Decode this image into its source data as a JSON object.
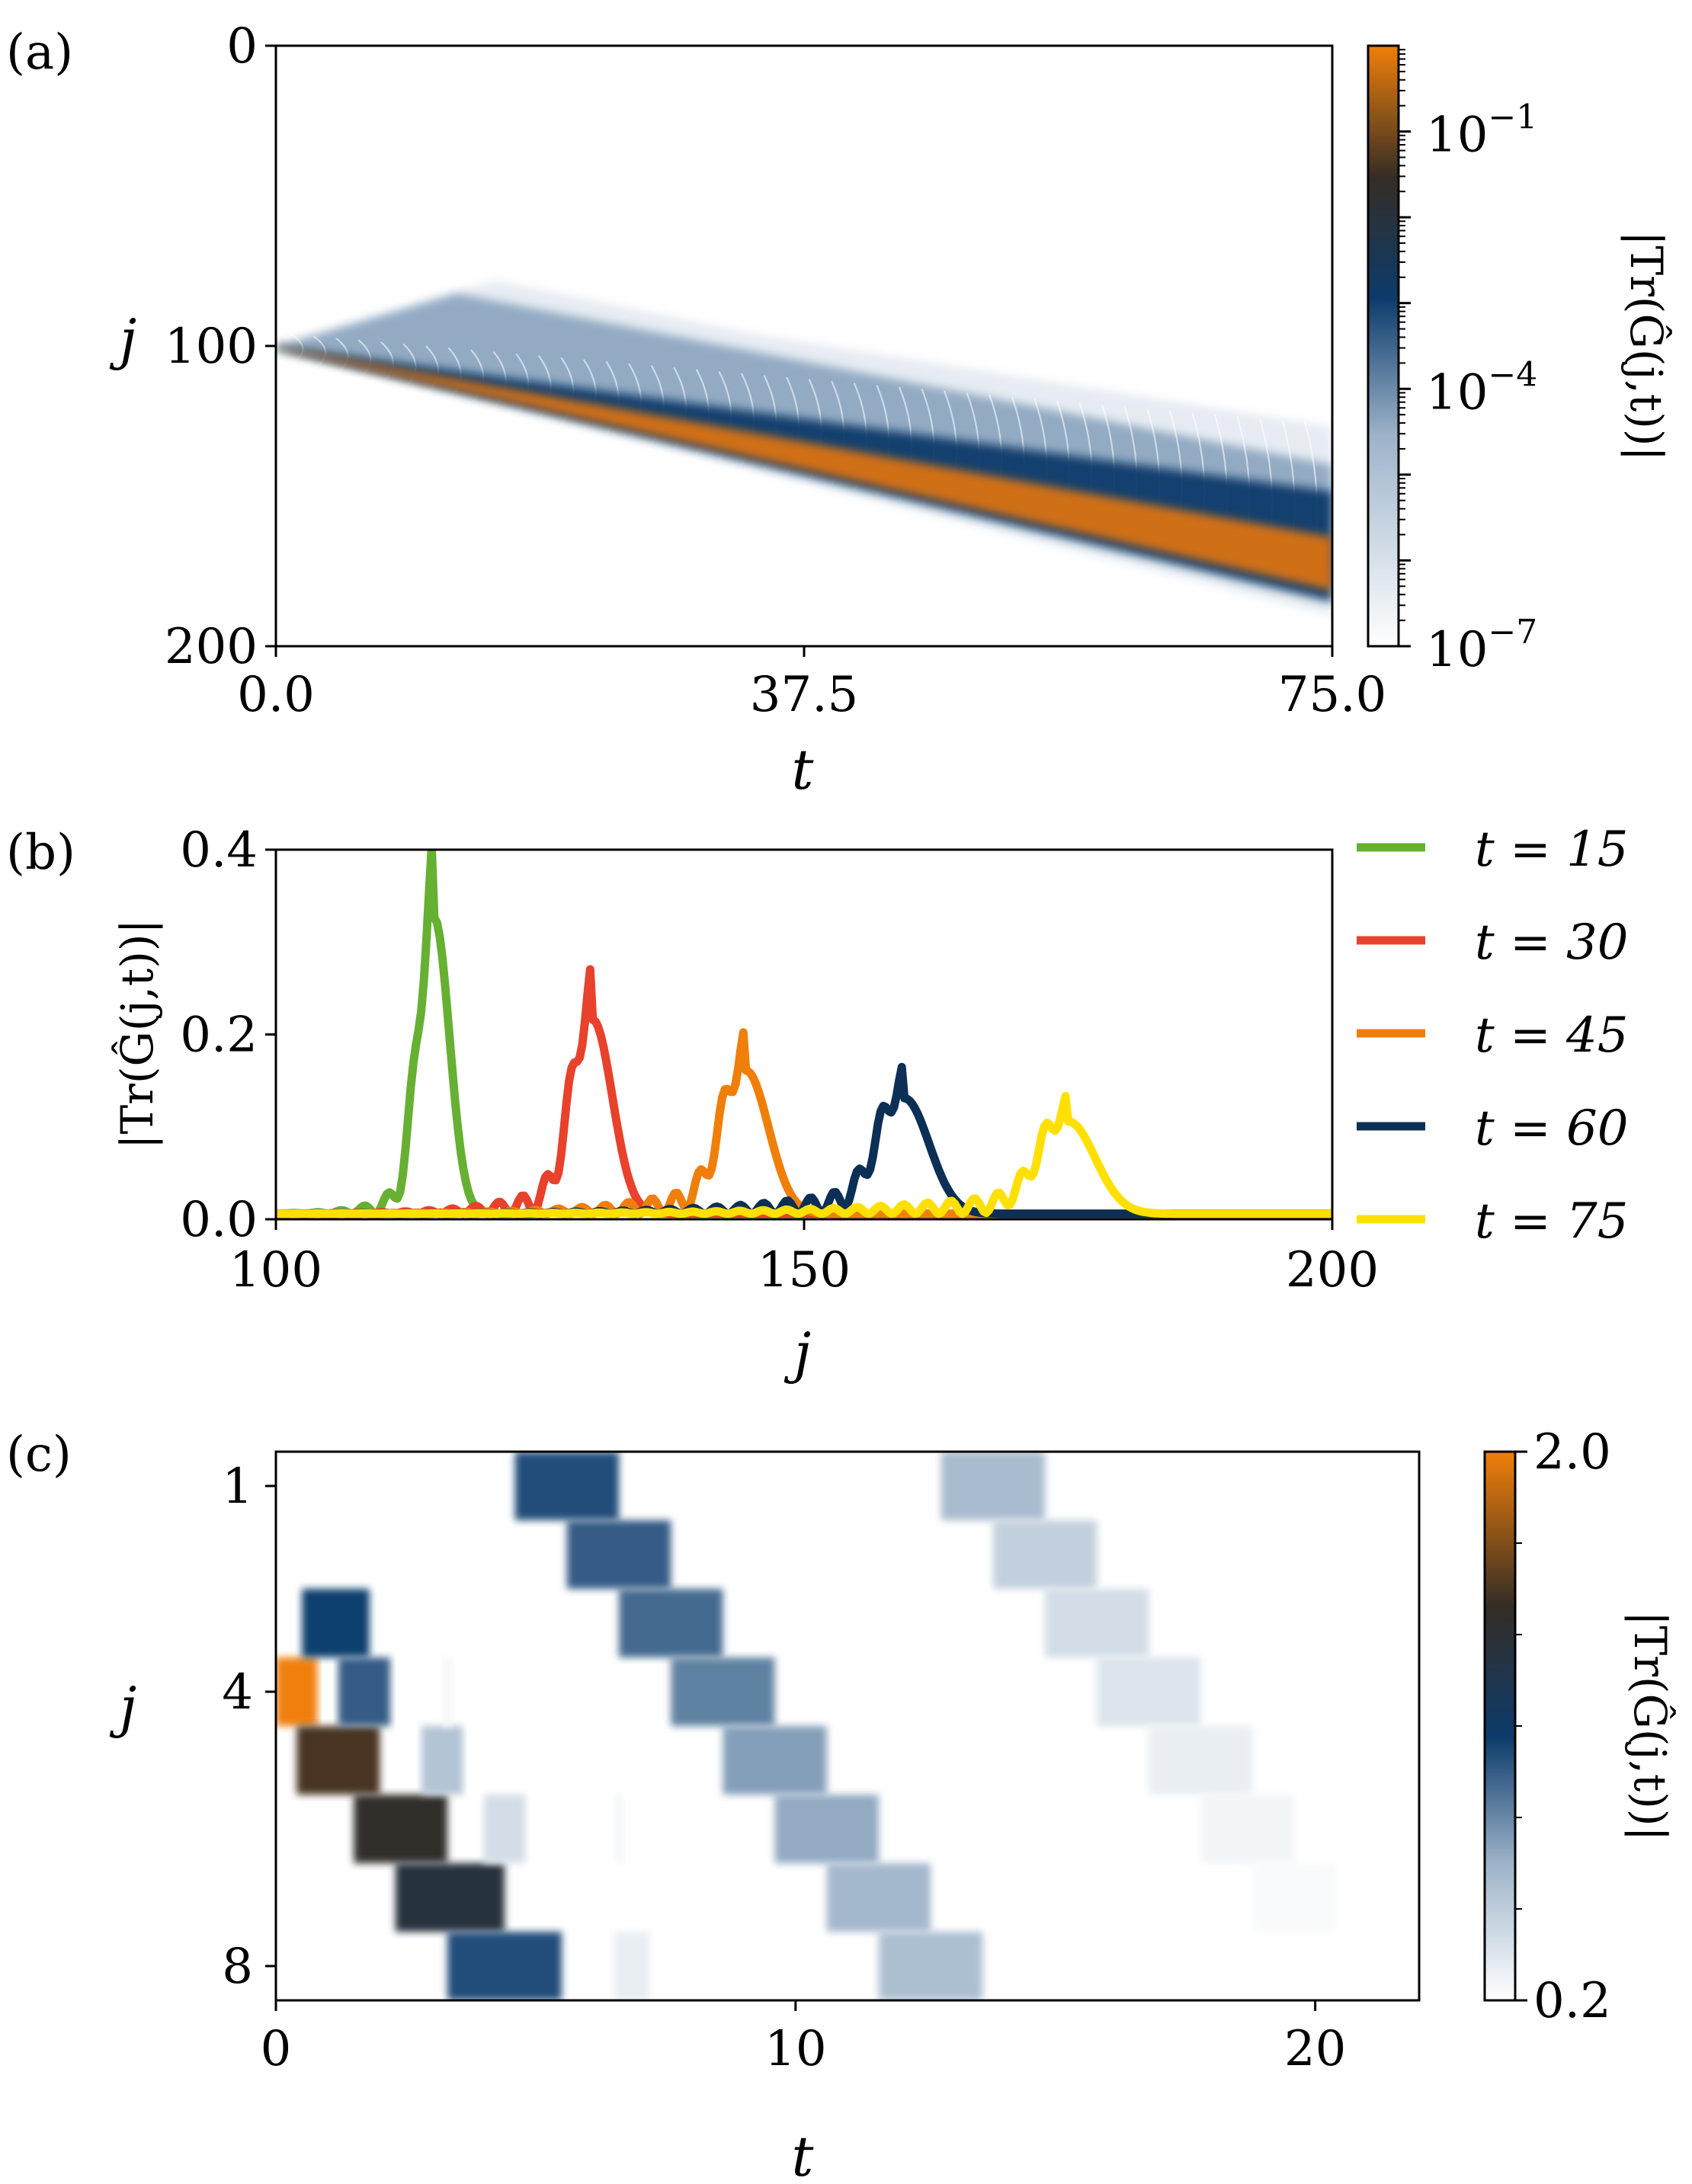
{
  "colors": {
    "green": "#66b032",
    "red": "#e8412c",
    "orange": "#f07f09",
    "navy": "#0c2f55",
    "yellow": "#ffe000",
    "cmap_low": "#f2f3f6",
    "cmap_mid": "#0c3b6b",
    "cmap_dark": "#352d25",
    "cmap_high": "#f07f09"
  },
  "chart_data": [
    {
      "panel_label": "(a)",
      "type": "heatmap",
      "xlabel": "t",
      "ylabel": "j",
      "x_range": [
        0,
        75
      ],
      "y_range": [
        0,
        200
      ],
      "x_ticks": [
        "0.0",
        "37.5",
        "75.0"
      ],
      "y_ticks": [
        "0",
        "100",
        "200"
      ],
      "colorbar": {
        "label": "|Tr(Ĝ(j,t))|",
        "scale": "log",
        "range": [
          1e-07,
          1
        ],
        "ticks": [
          {
            "base": "10",
            "exp": "−1"
          },
          {
            "base": "10",
            "exp": "−4"
          },
          {
            "base": "10",
            "exp": "−7"
          }
        ]
      },
      "source_site": 100,
      "front_velocity": 1.0,
      "front_end_site": 175
    },
    {
      "panel_label": "(b)",
      "type": "line",
      "xlabel": "j",
      "ylabel": "|Tr(Ĝ(j,t))|",
      "x_range": [
        100,
        200
      ],
      "y_range": [
        0,
        0.4
      ],
      "x_ticks": [
        "100",
        "150",
        "200"
      ],
      "y_ticks": [
        "0.0",
        "0.2",
        "0.4"
      ],
      "series": [
        {
          "name": "t = 15",
          "t": 15,
          "peak_j": 115,
          "peak_value": 0.32,
          "width": 2.0,
          "color_key": "green"
        },
        {
          "name": "t = 30",
          "t": 30,
          "peak_j": 130,
          "peak_value": 0.21,
          "width": 2.6,
          "color_key": "red"
        },
        {
          "name": "t = 45",
          "t": 45,
          "peak_j": 144.5,
          "peak_value": 0.155,
          "width": 3.0,
          "color_key": "orange"
        },
        {
          "name": "t = 60",
          "t": 60,
          "peak_j": 159.5,
          "peak_value": 0.125,
          "width": 3.3,
          "color_key": "navy"
        },
        {
          "name": "t = 75",
          "t": 75,
          "peak_j": 175,
          "peak_value": 0.1,
          "width": 3.6,
          "color_key": "yellow"
        }
      ]
    },
    {
      "panel_label": "(c)",
      "type": "heatmap",
      "xlabel": "t",
      "ylabel": "j",
      "x_range": [
        0,
        22
      ],
      "y_range": [
        0.5,
        8.5
      ],
      "x_ticks": [
        "0",
        "10",
        "20"
      ],
      "y_ticks": [
        "1",
        "4",
        "8"
      ],
      "colorbar": {
        "label": "|Tr(Ĝ(j,t))|",
        "scale": "linear",
        "range": [
          0.2,
          2.0
        ],
        "ticks": [
          "2.0",
          "0.2"
        ]
      },
      "blocks": [
        {
          "j": 4,
          "t0": 0.0,
          "t1": 0.8,
          "v": 2.0
        },
        {
          "j": 3,
          "t0": 0.5,
          "t1": 1.8,
          "v": 1.05
        },
        {
          "j": 5,
          "t0": 0.4,
          "t1": 2.0,
          "v": 1.55
        },
        {
          "j": 4,
          "t0": 1.2,
          "t1": 2.2,
          "v": 0.95
        },
        {
          "j": 6,
          "t0": 1.5,
          "t1": 3.3,
          "v": 1.45
        },
        {
          "j": 7,
          "t0": 2.3,
          "t1": 4.4,
          "v": 1.35
        },
        {
          "j": 8,
          "t0": 3.3,
          "t1": 5.5,
          "v": 1.0
        },
        {
          "j": 5,
          "t0": 2.8,
          "t1": 3.6,
          "v": 0.55
        },
        {
          "j": 6,
          "t0": 4.0,
          "t1": 4.8,
          "v": 0.4
        },
        {
          "j": 8,
          "t0": 6.5,
          "t1": 7.2,
          "v": 0.3
        },
        {
          "j": 4,
          "t0": 3.2,
          "t1": 3.4,
          "v": 0.25
        },
        {
          "j": 6,
          "t0": 6.5,
          "t1": 6.7,
          "v": 0.25
        },
        {
          "j": 1,
          "t0": 4.6,
          "t1": 6.6,
          "v": 1.0
        },
        {
          "j": 2,
          "t0": 5.6,
          "t1": 7.6,
          "v": 0.95
        },
        {
          "j": 3,
          "t0": 6.6,
          "t1": 8.6,
          "v": 0.9
        },
        {
          "j": 4,
          "t0": 7.6,
          "t1": 9.6,
          "v": 0.82
        },
        {
          "j": 5,
          "t0": 8.6,
          "t1": 10.6,
          "v": 0.72
        },
        {
          "j": 6,
          "t0": 9.6,
          "t1": 11.6,
          "v": 0.68
        },
        {
          "j": 7,
          "t0": 10.6,
          "t1": 12.6,
          "v": 0.62
        },
        {
          "j": 8,
          "t0": 11.6,
          "t1": 13.6,
          "v": 0.58
        },
        {
          "j": 1,
          "t0": 12.8,
          "t1": 14.8,
          "v": 0.6
        },
        {
          "j": 2,
          "t0": 13.8,
          "t1": 15.8,
          "v": 0.48
        },
        {
          "j": 3,
          "t0": 14.8,
          "t1": 16.8,
          "v": 0.4
        },
        {
          "j": 4,
          "t0": 15.8,
          "t1": 17.8,
          "v": 0.36
        },
        {
          "j": 5,
          "t0": 16.8,
          "t1": 18.8,
          "v": 0.3
        },
        {
          "j": 6,
          "t0": 17.8,
          "t1": 19.6,
          "v": 0.26
        },
        {
          "j": 7,
          "t0": 18.8,
          "t1": 20.4,
          "v": 0.23
        }
      ]
    }
  ]
}
